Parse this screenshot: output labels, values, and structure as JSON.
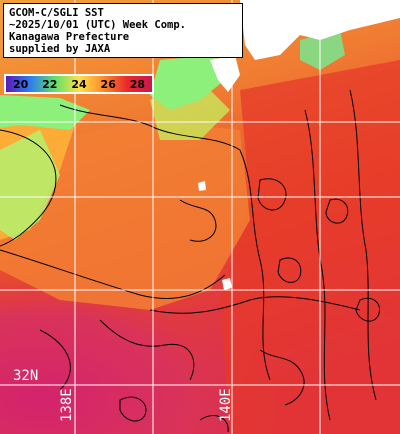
{
  "info": {
    "lines": [
      "GCOM-C/SGLI SST",
      "~2025/10/01 (UTC) Week Comp.",
      "Kanagawa Prefecture",
      "supplied by JAXA"
    ]
  },
  "colorbar": {
    "ticks": [
      "20",
      "22",
      "24",
      "26",
      "28"
    ],
    "colors": [
      "#5a1ab4",
      "#2f7cf0",
      "#5fe06a",
      "#ffe04a",
      "#ff8a2a",
      "#e8282a",
      "#c8184e"
    ]
  },
  "grid": {
    "lat_label": "32N",
    "lon_labels": [
      "138E",
      "140E"
    ]
  },
  "palette": {
    "sea_warm": "#e63a2a",
    "sea_hot": "#d62760",
    "sea_orange": "#f07a32",
    "sea_yellow": "#ffb43a",
    "coast_green": "#8cf07a",
    "land": "#ffffff",
    "grid_line": "#ffffff"
  }
}
